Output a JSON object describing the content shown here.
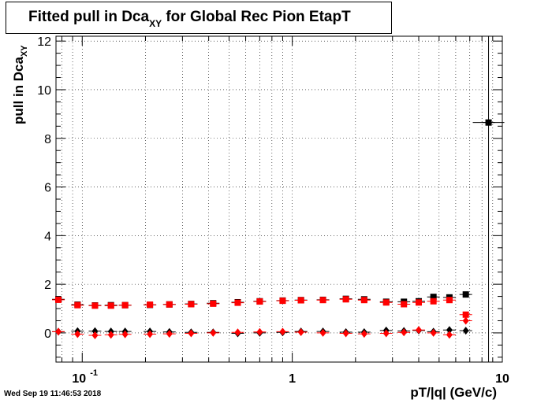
{
  "title": {
    "main": "Fitted pull in Dca",
    "sub": "XY",
    "rest": " for Global Rec Pion EtapT"
  },
  "ylabel": {
    "main": "pull in Dca",
    "sub": "XY"
  },
  "xlabel": "pT/|q| (GeV/c)",
  "timestamp": "Wed Sep 19 11:46:53 2018",
  "chart_data": {
    "type": "scatter",
    "title": "Fitted pull in Dca_XY for Global Rec Pion EtapT",
    "xlabel": "pT/|q| (GeV/c)",
    "ylabel": "pull in Dca_XY",
    "xscale": "log",
    "xlim": [
      0.075,
      10
    ],
    "ylim": [
      -1.2,
      12.2
    ],
    "grid": true,
    "x_tick_labels": [
      {
        "value": 0.1,
        "base": "10",
        "exp": "-1"
      },
      {
        "value": 1,
        "base": "1",
        "exp": ""
      },
      {
        "value": 10,
        "base": "10",
        "exp": ""
      }
    ],
    "y_tick_labels": [
      0,
      2,
      4,
      6,
      8,
      10,
      12
    ],
    "series": [
      {
        "color": "#000000",
        "marker": "square",
        "points": [
          [
            0.077,
            1.38
          ],
          [
            0.095,
            1.16
          ],
          [
            0.115,
            1.13
          ],
          [
            0.137,
            1.14
          ],
          [
            0.16,
            1.14
          ],
          [
            0.21,
            1.15
          ],
          [
            0.26,
            1.17
          ],
          [
            0.33,
            1.19
          ],
          [
            0.42,
            1.22
          ],
          [
            0.55,
            1.26
          ],
          [
            0.7,
            1.3
          ],
          [
            0.9,
            1.33
          ],
          [
            1.1,
            1.35
          ],
          [
            1.4,
            1.36
          ],
          [
            1.8,
            1.4
          ],
          [
            2.2,
            1.38
          ],
          [
            2.8,
            1.28
          ],
          [
            3.4,
            1.28
          ],
          [
            4.0,
            1.3
          ],
          [
            4.7,
            1.48
          ],
          [
            5.6,
            1.46
          ],
          [
            6.7,
            1.58
          ],
          [
            8.6,
            8.65
          ]
        ]
      },
      {
        "color": "#000000",
        "marker": "diamond",
        "points": [
          [
            0.077,
            0.05
          ],
          [
            0.095,
            0.07
          ],
          [
            0.115,
            0.07
          ],
          [
            0.137,
            0.06
          ],
          [
            0.16,
            0.06
          ],
          [
            0.21,
            0.06
          ],
          [
            0.26,
            0.04
          ],
          [
            0.33,
            0.02
          ],
          [
            0.42,
            0.02
          ],
          [
            0.55,
            -0.02
          ],
          [
            0.7,
            0.0
          ],
          [
            0.9,
            0.02
          ],
          [
            1.1,
            0.06
          ],
          [
            1.4,
            0.06
          ],
          [
            1.8,
            0.03
          ],
          [
            2.2,
            0.03
          ],
          [
            2.8,
            0.1
          ],
          [
            3.4,
            0.08
          ],
          [
            4.0,
            0.1
          ],
          [
            4.7,
            0.05
          ],
          [
            5.6,
            0.12
          ],
          [
            6.7,
            0.09
          ]
        ]
      },
      {
        "color": "#ff0000",
        "marker": "square",
        "points": [
          [
            0.077,
            1.36
          ],
          [
            0.095,
            1.14
          ],
          [
            0.115,
            1.12
          ],
          [
            0.137,
            1.12
          ],
          [
            0.16,
            1.14
          ],
          [
            0.21,
            1.16
          ],
          [
            0.26,
            1.17
          ],
          [
            0.33,
            1.18
          ],
          [
            0.42,
            1.2
          ],
          [
            0.55,
            1.24
          ],
          [
            0.7,
            1.29
          ],
          [
            0.9,
            1.32
          ],
          [
            1.1,
            1.34
          ],
          [
            1.4,
            1.35
          ],
          [
            1.8,
            1.38
          ],
          [
            2.2,
            1.35
          ],
          [
            2.8,
            1.25
          ],
          [
            3.4,
            1.18
          ],
          [
            4.0,
            1.25
          ],
          [
            4.7,
            1.3
          ],
          [
            5.6,
            1.35
          ],
          [
            6.7,
            0.75
          ]
        ]
      },
      {
        "color": "#ff0000",
        "marker": "diamond",
        "points": [
          [
            0.077,
            0.05
          ],
          [
            0.095,
            -0.05
          ],
          [
            0.115,
            -0.1
          ],
          [
            0.137,
            -0.08
          ],
          [
            0.16,
            -0.06
          ],
          [
            0.21,
            -0.05
          ],
          [
            0.26,
            -0.04
          ],
          [
            0.33,
            -0.02
          ],
          [
            0.42,
            0.0
          ],
          [
            0.55,
            0.02
          ],
          [
            0.7,
            0.04
          ],
          [
            0.9,
            0.05
          ],
          [
            1.1,
            0.03
          ],
          [
            1.4,
            0.0
          ],
          [
            1.8,
            -0.02
          ],
          [
            2.2,
            -0.04
          ],
          [
            2.8,
            -0.02
          ],
          [
            3.4,
            0.02
          ],
          [
            4.0,
            0.12
          ],
          [
            4.7,
            0.0
          ],
          [
            5.6,
            -0.08
          ],
          [
            6.7,
            0.5
          ]
        ]
      }
    ]
  }
}
